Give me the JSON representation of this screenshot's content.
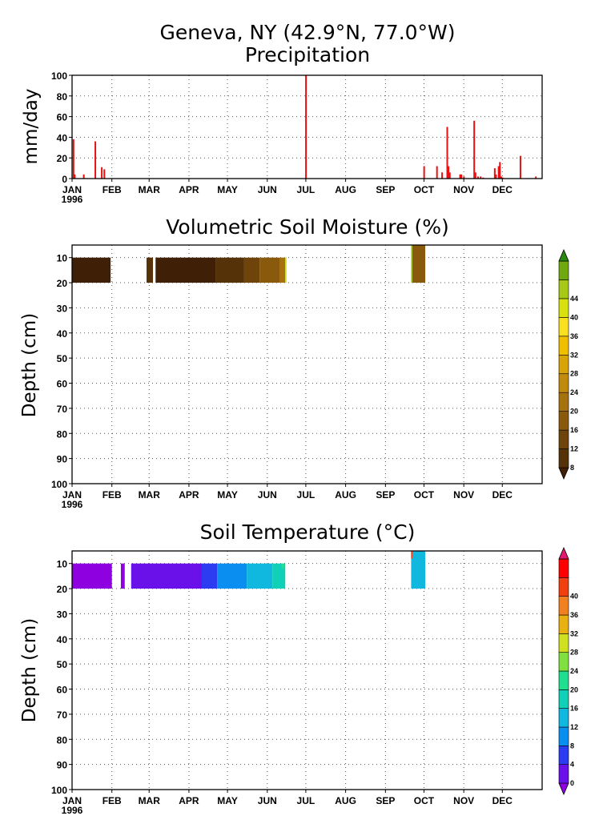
{
  "figure": {
    "title": "Geneva, NY  (42.9°N, 77.0°W)"
  },
  "colors": {
    "precip": "#e81010",
    "moisture_scale": [
      "#3f2006",
      "#553208",
      "#6e440a",
      "#8a5a0c",
      "#a6720e",
      "#c08a0c",
      "#d8a408",
      "#f0c000",
      "#fae020",
      "#d8e010",
      "#a8c818",
      "#70a810",
      "#2a8a10"
    ],
    "temperature_scale": [
      "#8f00e0",
      "#6a10e8",
      "#2c3cf0",
      "#0a8ff0",
      "#10b8e0",
      "#10d0b8",
      "#20e090",
      "#80e040",
      "#d0e020",
      "#e8b010",
      "#f08020",
      "#f04010",
      "#ff0000",
      "#e01870"
    ]
  },
  "chart_data": [
    {
      "type": "bar",
      "title": "Precipitation",
      "ylabel": "mm/day",
      "xlabel": "",
      "ylim": [
        0,
        100
      ],
      "yticks": [
        0,
        20,
        40,
        60,
        80,
        100
      ],
      "xlim": [
        0,
        366
      ],
      "xtick_labels": [
        "JAN",
        "FEB",
        "MAR",
        "APR",
        "MAY",
        "JUN",
        "JUL",
        "AUG",
        "SEP",
        "OCT",
        "NOV",
        "DEC"
      ],
      "xtick_days": [
        0,
        31,
        60,
        91,
        121,
        152,
        182,
        213,
        244,
        274,
        305,
        335
      ],
      "year_label": "1996",
      "grid": true,
      "x": [
        1,
        2,
        9,
        18,
        23,
        25,
        182,
        274,
        284,
        288,
        292,
        293,
        294,
        302,
        303,
        305,
        313,
        314,
        316,
        318,
        320,
        329,
        330,
        332,
        333,
        334,
        335,
        349,
        361
      ],
      "values": [
        38,
        4,
        4,
        36,
        11,
        9,
        100,
        12,
        12,
        6,
        50,
        12,
        6,
        4,
        4,
        2,
        56,
        6,
        2,
        2,
        1,
        10,
        4,
        12,
        16,
        2,
        1,
        22,
        2
      ]
    },
    {
      "type": "heatmap",
      "title": "Volumetric Soil Moisture (%)",
      "xlabel": "",
      "ylabel": "Depth (cm)",
      "ylim": [
        100,
        5
      ],
      "yticks": [
        10,
        20,
        30,
        40,
        50,
        60,
        70,
        80,
        90,
        100
      ],
      "xlim": [
        0,
        366
      ],
      "xtick_labels": [
        "JAN",
        "FEB",
        "MAR",
        "APR",
        "MAY",
        "JUN",
        "JUL",
        "AUG",
        "SEP",
        "OCT",
        "NOV",
        "DEC"
      ],
      "xtick_days": [
        0,
        31,
        60,
        91,
        121,
        152,
        182,
        213,
        244,
        274,
        305,
        335
      ],
      "year_label": "1996",
      "grid": true,
      "colorbar_levels": [
        8,
        12,
        16,
        20,
        24,
        28,
        32,
        36,
        40,
        44
      ],
      "cells": [
        {
          "x0": 0,
          "x1": 30,
          "top": 10,
          "bottom": 20,
          "value": 6
        },
        {
          "x0": 58,
          "x1": 63,
          "top": 10,
          "bottom": 20,
          "value": 8
        },
        {
          "x0": 65,
          "x1": 112,
          "top": 10,
          "bottom": 20,
          "value": 7
        },
        {
          "x0": 112,
          "x1": 134,
          "top": 10,
          "bottom": 20,
          "value": 10
        },
        {
          "x0": 134,
          "x1": 146,
          "top": 10,
          "bottom": 20,
          "value": 14
        },
        {
          "x0": 146,
          "x1": 162,
          "top": 10,
          "bottom": 20,
          "value": 18
        },
        {
          "x0": 162,
          "x1": 166,
          "top": 10,
          "bottom": 20,
          "value": 22
        },
        {
          "x0": 166,
          "x1": 167,
          "top": 10,
          "bottom": 20,
          "value": 40
        },
        {
          "x0": 264,
          "x1": 275,
          "top": 5,
          "bottom": 20,
          "value": 18
        },
        {
          "x0": 264,
          "x1": 265,
          "top": 5,
          "bottom": 20,
          "value": 44
        }
      ]
    },
    {
      "type": "heatmap",
      "title": "Soil Temperature (°C)",
      "xlabel": "",
      "ylabel": "Depth (cm)",
      "ylim": [
        100,
        5
      ],
      "yticks": [
        10,
        20,
        30,
        40,
        50,
        60,
        70,
        80,
        90,
        100
      ],
      "xlim": [
        0,
        366
      ],
      "xtick_labels": [
        "JAN",
        "FEB",
        "MAR",
        "APR",
        "MAY",
        "JUN",
        "JUL",
        "AUG",
        "SEP",
        "OCT",
        "NOV",
        "DEC"
      ],
      "xtick_days": [
        0,
        31,
        60,
        91,
        121,
        152,
        182,
        213,
        244,
        274,
        305,
        335
      ],
      "year_label": "1996",
      "grid": true,
      "colorbar_levels": [
        0,
        4,
        8,
        12,
        16,
        20,
        24,
        28,
        32,
        36,
        40
      ],
      "cells": [
        {
          "x0": 0,
          "x1": 31,
          "top": 10,
          "bottom": 20,
          "value": -1
        },
        {
          "x0": 38,
          "x1": 41,
          "top": 10,
          "bottom": 20,
          "value": -1
        },
        {
          "x0": 46,
          "x1": 101,
          "top": 10,
          "bottom": 20,
          "value": 0
        },
        {
          "x0": 101,
          "x1": 113,
          "top": 10,
          "bottom": 20,
          "value": 5
        },
        {
          "x0": 113,
          "x1": 136,
          "top": 10,
          "bottom": 20,
          "value": 9
        },
        {
          "x0": 136,
          "x1": 156,
          "top": 10,
          "bottom": 20,
          "value": 14
        },
        {
          "x0": 156,
          "x1": 166,
          "top": 10,
          "bottom": 20,
          "value": 17
        },
        {
          "x0": 163,
          "x1": 165,
          "top": 10,
          "bottom": 12,
          "value": 22
        },
        {
          "x0": 264,
          "x1": 275,
          "top": 5,
          "bottom": 20,
          "value": 14
        },
        {
          "x0": 264,
          "x1": 265,
          "top": 5,
          "bottom": 8,
          "value": 41
        }
      ]
    }
  ]
}
